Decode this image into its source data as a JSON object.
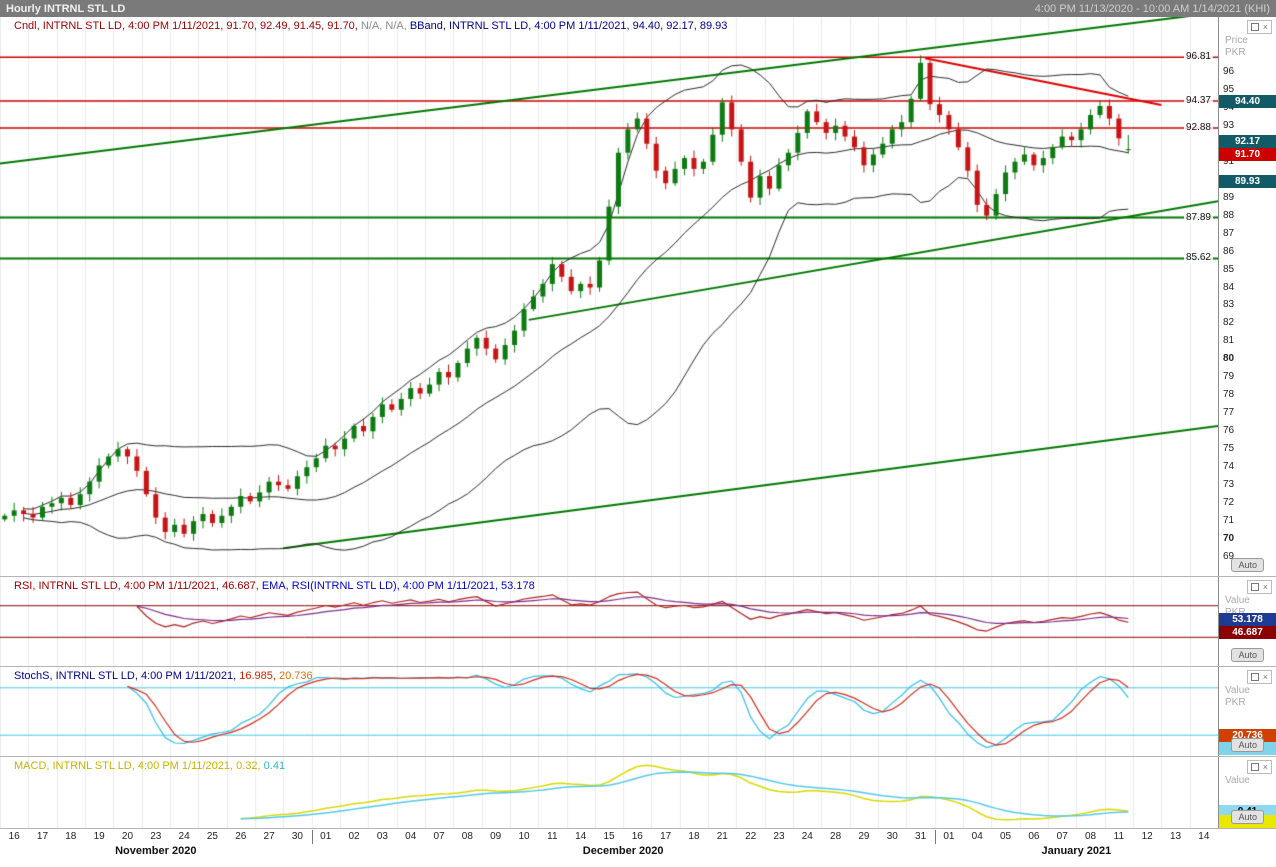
{
  "titlebar": {
    "title": "Hourly INTRNL STL LD",
    "range": "4:00 PM 11/13/2020 - 10:00 AM 1/14/2021 (KHI)"
  },
  "panels": {
    "main": {
      "legend": [
        {
          "text": "Cndl, INTRNL STL LD, 4:00 PM 1/11/2021, 91.70, 92.49, 91.45, 91.70, ",
          "color": "#990000"
        },
        {
          "text": "N/A, N/A, ",
          "color": "#8a8a8a"
        },
        {
          "text": "BBand, INTRNL STL LD, 4:00 PM 1/11/2021, 94.40, 92.17, 89.93",
          "color": "#00008b"
        }
      ],
      "axis_title": [
        "Price",
        "PKR"
      ],
      "ticks": [
        96,
        95,
        94,
        93,
        92,
        91,
        90,
        89,
        88,
        87,
        86,
        85,
        84,
        83,
        82,
        81,
        80,
        79,
        78,
        77,
        76,
        75,
        74,
        73,
        72,
        71,
        70,
        69
      ],
      "bold_ticks": [
        80,
        70
      ],
      "level_labels": [
        {
          "text": "96.81",
          "price": 96.81
        },
        {
          "text": "94.37",
          "price": 94.37
        },
        {
          "text": "92.88",
          "price": 92.88
        },
        {
          "text": "87.89",
          "price": 87.89
        },
        {
          "text": "85.62",
          "price": 85.62
        }
      ],
      "badges": [
        {
          "text": "94.40",
          "price": 94.4,
          "bg": "#115a66",
          "fg": "#ffffff"
        },
        {
          "text": "92.17",
          "price": 92.17,
          "bg": "#115a66",
          "fg": "#ffffff"
        },
        {
          "text": "91.70",
          "price": 91.7,
          "bg": "#cc0000",
          "fg": "#ffffff"
        },
        {
          "text": "89.93",
          "price": 89.93,
          "bg": "#115a66",
          "fg": "#ffffff"
        }
      ],
      "auto_label": "Auto"
    },
    "rsi": {
      "legend": [
        {
          "text": "RSI, INTRNL STL LD, 4:00 PM 1/11/2021, 46.687, ",
          "color": "#a00000"
        },
        {
          "text": "EMA, RSI(INTRNL STL LD), 4:00 PM 1/11/2021, 53.178",
          "color": "#0000cc"
        }
      ],
      "axis_title": [
        "Value",
        "PKR"
      ],
      "badges": [
        {
          "text": "53.178",
          "value": 53.178,
          "bg": "#1f3a93",
          "fg": "#ffffff"
        },
        {
          "text": "46.687",
          "value": 46.687,
          "bg": "#8b0000",
          "fg": "#ffffff"
        }
      ],
      "auto_label": "Auto"
    },
    "stoch": {
      "legend": [
        {
          "text": "StochS, INTRNL STL LD, 4:00 PM 1/11/2021, ",
          "color": "#00008b"
        },
        {
          "text": "16.985, ",
          "color": "#cc2200"
        },
        {
          "text": "20.736",
          "color": "#e07000"
        }
      ],
      "axis_title": [
        "Value",
        "PKR"
      ],
      "badges": [
        {
          "text": "20.736",
          "value": 20.736,
          "bg": "#d04000",
          "fg": "#ffffff"
        },
        {
          "text": "16.985",
          "value": 16.985,
          "bg": "#7fd4ea",
          "fg": "#000000"
        }
      ],
      "auto_label": "Auto"
    },
    "macd": {
      "legend": [
        {
          "text": "MACD, INTRNL STL LD, 4:00 PM 1/11/2021, ",
          "color": "#c8b400"
        },
        {
          "text": "0.32, ",
          "color": "#c8b400"
        },
        {
          "text": "0.41",
          "color": "#33b5cc"
        }
      ],
      "axis_title": [
        "Value"
      ],
      "badges": [
        {
          "text": "0.41",
          "value": 0.41,
          "bg": "#8ed8f0",
          "fg": "#000000"
        },
        {
          "text": "0.32",
          "value": 0.32,
          "bg": "#e8e800",
          "fg": "#000000"
        }
      ],
      "auto_label": "Auto"
    }
  },
  "xaxis": {
    "day_labels": [
      "16",
      "17",
      "18",
      "19",
      "20",
      "23",
      "24",
      "25",
      "26",
      "27",
      "30",
      "01",
      "02",
      "03",
      "04",
      "07",
      "08",
      "09",
      "10",
      "11",
      "14",
      "15",
      "16",
      "17",
      "18",
      "21",
      "22",
      "23",
      "24",
      "28",
      "29",
      "30",
      "31",
      "01",
      "04",
      "05",
      "06",
      "07",
      "08",
      "11",
      "12",
      "13",
      "14"
    ],
    "month_groups": [
      {
        "label": "November 2020",
        "days": 11
      },
      {
        "label": "December 2020",
        "days": 22
      },
      {
        "label": "January 2021",
        "days": 10
      }
    ]
  },
  "chart_data": {
    "type": "candlestick",
    "title": "Hourly INTRNL STL LD",
    "currency": "PKR",
    "x_range": "4:00 PM 11/13/2020 - 10:00 AM 1/14/2021 (KHI)",
    "candles_per_day": 3,
    "total_slots": 129,
    "price_range": [
      67.95,
      99.05
    ],
    "closes": [
      71.3,
      71.6,
      71.4,
      71.2,
      71.8,
      72.0,
      72.3,
      71.9,
      72.5,
      73.2,
      74.1,
      74.6,
      75.0,
      74.6,
      73.8,
      72.5,
      71.2,
      70.4,
      70.8,
      70.3,
      71.0,
      71.4,
      70.9,
      71.3,
      71.8,
      72.4,
      72.1,
      72.6,
      73.2,
      73.0,
      72.8,
      73.5,
      74.0,
      74.5,
      75.2,
      75.0,
      75.6,
      76.3,
      76.0,
      76.8,
      77.5,
      77.2,
      77.8,
      78.4,
      78.1,
      78.6,
      79.3,
      79.0,
      79.8,
      80.6,
      81.2,
      80.6,
      80.0,
      80.8,
      81.6,
      82.8,
      83.5,
      84.2,
      85.3,
      84.6,
      83.8,
      84.2,
      84.0,
      85.5,
      88.5,
      91.5,
      92.8,
      93.4,
      92.0,
      90.5,
      89.8,
      90.6,
      91.2,
      90.6,
      91.0,
      92.5,
      94.3,
      92.8,
      91.0,
      89.0,
      90.2,
      89.5,
      90.8,
      91.5,
      92.6,
      93.8,
      93.2,
      92.6,
      93.0,
      92.4,
      91.8,
      90.8,
      91.4,
      92.0,
      92.8,
      93.2,
      94.5,
      96.5,
      94.2,
      93.6,
      92.8,
      91.8,
      90.5,
      88.6,
      88.0,
      89.2,
      90.4,
      91.0,
      91.4,
      90.8,
      91.2,
      91.8,
      92.4,
      92.2,
      92.8,
      93.6,
      94.1,
      93.4,
      92.3,
      91.7
    ],
    "last_candle": {
      "open": 91.7,
      "high": 92.49,
      "low": 91.45,
      "close": 91.7
    },
    "bollinger": {
      "period": 20,
      "stddev": 2,
      "upper_last": 94.4,
      "middle_last": 92.17,
      "lower_last": 89.93
    },
    "levels": [
      {
        "price": 96.81,
        "color": "#cc0000",
        "width": 1.5
      },
      {
        "price": 94.37,
        "color": "#cc0000",
        "width": 1.5
      },
      {
        "price": 92.88,
        "color": "#cc0000",
        "width": 1.5
      },
      {
        "price": 87.89,
        "color": "#007700",
        "width": 2
      },
      {
        "price": 85.62,
        "color": "#007700",
        "width": 2
      }
    ],
    "trendlines": [
      {
        "x1": 0,
        "p1": 90.9,
        "x2": 129,
        "p2": 99.3,
        "color": "#007700",
        "width": 2
      },
      {
        "x1": 56,
        "p1": 82.2,
        "x2": 129,
        "p2": 88.8,
        "color": "#007700",
        "width": 2
      },
      {
        "x1": 30,
        "p1": 69.5,
        "x2": 129,
        "p2": 76.3,
        "color": "#007700",
        "width": 2
      },
      {
        "x1": 98,
        "p1": 96.75,
        "x2": 123,
        "p2": 94.15,
        "color": "#dd0000",
        "width": 2
      }
    ],
    "colors": {
      "up": "#0e7a12",
      "down": "#c81414",
      "bband": "#2a2a2a",
      "rsi": "#b22222",
      "rsi_ema": "#7b2d8b",
      "stoch_k": "#33bbee",
      "stoch_d": "#d03020",
      "macd": "#d8d800",
      "macd_signal": "#55c8e8",
      "grid": "#ebebeb"
    },
    "rsi": {
      "period": 14,
      "ema_period": 9,
      "last": 46.687,
      "ema_last": 53.178,
      "upper_band": 70,
      "lower_band": 30,
      "band_color": "#8b0000"
    },
    "stoch": {
      "k_last": 16.985,
      "d_last": 20.736,
      "upper_band": 80,
      "lower_band": 20,
      "band_color": "#44c8e8"
    },
    "macd": {
      "fast": 12,
      "slow": 26,
      "signal": 9,
      "macd_last": 0.32,
      "signal_last": 0.41
    }
  }
}
